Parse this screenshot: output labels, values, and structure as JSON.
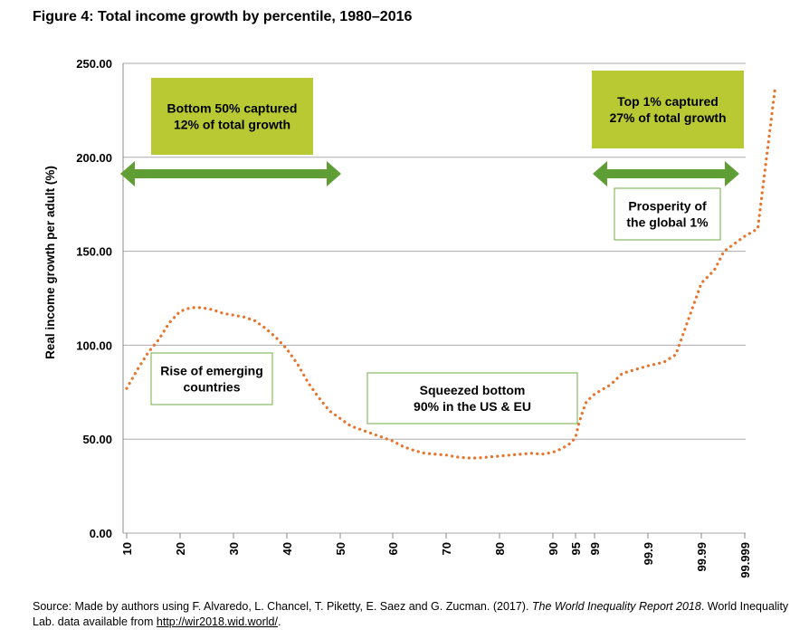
{
  "title": "Figure 4: Total income growth by percentile, 1980–2016",
  "source": {
    "prefix": "Source: Made by authors using F. Alvaredo, L. Chancel, T. Piketty, E. Saez and G. Zucman. (2017). ",
    "italic": "The World Inequality Report 2018",
    "middle": ". World Inequality Lab. data available from ",
    "link": "http://wir2018.wid.world/",
    "suffix": "."
  },
  "chart_data": {
    "type": "line",
    "ylabel": "Real income growth per adult (%)",
    "xlabel": "",
    "ylim": [
      0,
      250
    ],
    "y_ticks": [
      "0.00",
      "50.00",
      "100.00",
      "150.00",
      "200.00",
      "250.00"
    ],
    "x_ticks": [
      "10",
      "20",
      "30",
      "40",
      "50",
      "60",
      "70",
      "80",
      "90",
      "95",
      "99",
      "99.9",
      "99.99",
      "99.999"
    ],
    "grid": true,
    "line_color": "#E8732A",
    "line_style": "dotted",
    "series": [
      {
        "x": [
          10,
          12,
          14,
          16,
          18,
          20,
          22,
          24,
          26,
          28,
          30,
          32,
          34,
          36,
          38,
          40,
          42,
          44,
          46,
          48,
          50,
          52,
          54,
          56,
          58,
          60,
          62,
          64,
          66,
          68,
          70,
          72,
          74,
          76,
          78,
          80,
          82,
          84,
          86,
          88,
          90,
          92,
          94,
          95,
          96,
          97,
          98,
          99,
          99.5,
          99.7,
          99.9,
          99.95,
          99.97,
          99.99,
          99.995,
          99.997,
          99.999,
          99.9995,
          99.9998
        ],
        "y": [
          77,
          87,
          96,
          103,
          112,
          118,
          120,
          120,
          119,
          117,
          116,
          115,
          113,
          109,
          104,
          98,
          90,
          80,
          72,
          65,
          61,
          57,
          55,
          53,
          51,
          49,
          46,
          44,
          42.5,
          42,
          41.5,
          40.5,
          40,
          40,
          40.5,
          41,
          41.5,
          42,
          42.5,
          42,
          43,
          45,
          48,
          51,
          57,
          63,
          70,
          74,
          79,
          85,
          89,
          91,
          95,
          133,
          140,
          150,
          158,
          162,
          237
        ]
      }
    ],
    "annotations": [
      {
        "lines": [
          "Bottom 50% captured",
          "12% of total growth"
        ],
        "style": "filled"
      },
      {
        "lines": [
          "Top 1% captured",
          "27% of total growth"
        ],
        "style": "filled"
      },
      {
        "lines": [
          "Prosperity of",
          "the global 1%"
        ],
        "style": "outlined"
      },
      {
        "lines": [
          "Rise of emerging",
          "countries"
        ],
        "style": "outlined"
      },
      {
        "lines": [
          "Squeezed bottom",
          "90% in the US & EU"
        ],
        "style": "outlined"
      }
    ],
    "colors": {
      "fill_box": "#B8C934",
      "outline_box": "#6FAE44",
      "arrow": "#5E9E34",
      "grid": "#AAAAAA"
    }
  }
}
